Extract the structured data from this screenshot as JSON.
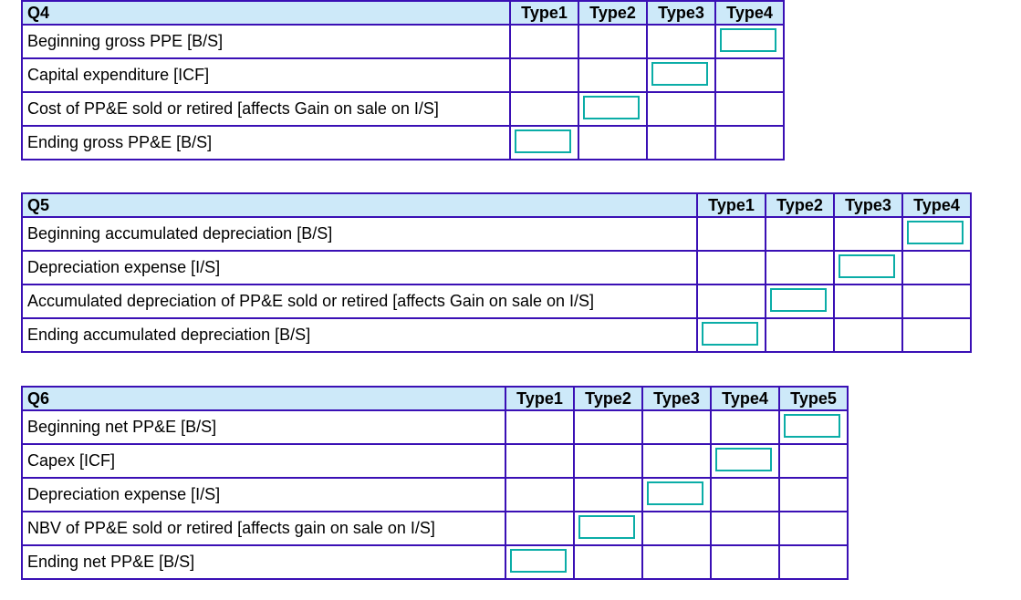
{
  "colors": {
    "header_bg": "#cde9f9",
    "grid_border": "#3a10b5",
    "answer_box_border": "#0bada7",
    "text": "#000000",
    "page_bg": "#ffffff"
  },
  "tables": [
    {
      "title": "Q4",
      "columns": [
        "Type1",
        "Type2",
        "Type3",
        "Type4"
      ],
      "rows": [
        {
          "label": "Beginning gross PPE [B/S]",
          "box_column": "Type4"
        },
        {
          "label": "Capital expenditure [ICF]",
          "box_column": "Type3"
        },
        {
          "label": "Cost of PP&E sold or retired [affects Gain on sale on I/S]",
          "box_column": "Type2"
        },
        {
          "label": "Ending gross PP&E [B/S]",
          "box_column": "Type1"
        }
      ]
    },
    {
      "title": "Q5",
      "columns": [
        "Type1",
        "Type2",
        "Type3",
        "Type4"
      ],
      "rows": [
        {
          "label": "Beginning accumulated depreciation [B/S]",
          "box_column": "Type4"
        },
        {
          "label": "Depreciation expense [I/S]",
          "box_column": "Type3"
        },
        {
          "label": "Accumulated depreciation of PP&E sold or retired [affects Gain on sale on I/S]",
          "box_column": "Type2"
        },
        {
          "label": "Ending accumulated depreciation [B/S]",
          "box_column": "Type1"
        }
      ]
    },
    {
      "title": "Q6",
      "columns": [
        "Type1",
        "Type2",
        "Type3",
        "Type4",
        "Type5"
      ],
      "rows": [
        {
          "label": "Beginning net PP&E [B/S]",
          "box_column": "Type5"
        },
        {
          "label": "Capex [ICF]",
          "box_column": "Type4"
        },
        {
          "label": "Depreciation expense [I/S]",
          "box_column": "Type3"
        },
        {
          "label": "NBV of PP&E sold or retired [affects gain on sale on I/S]",
          "box_column": "Type2"
        },
        {
          "label": "Ending net PP&E [B/S]",
          "box_column": "Type1"
        }
      ]
    }
  ]
}
